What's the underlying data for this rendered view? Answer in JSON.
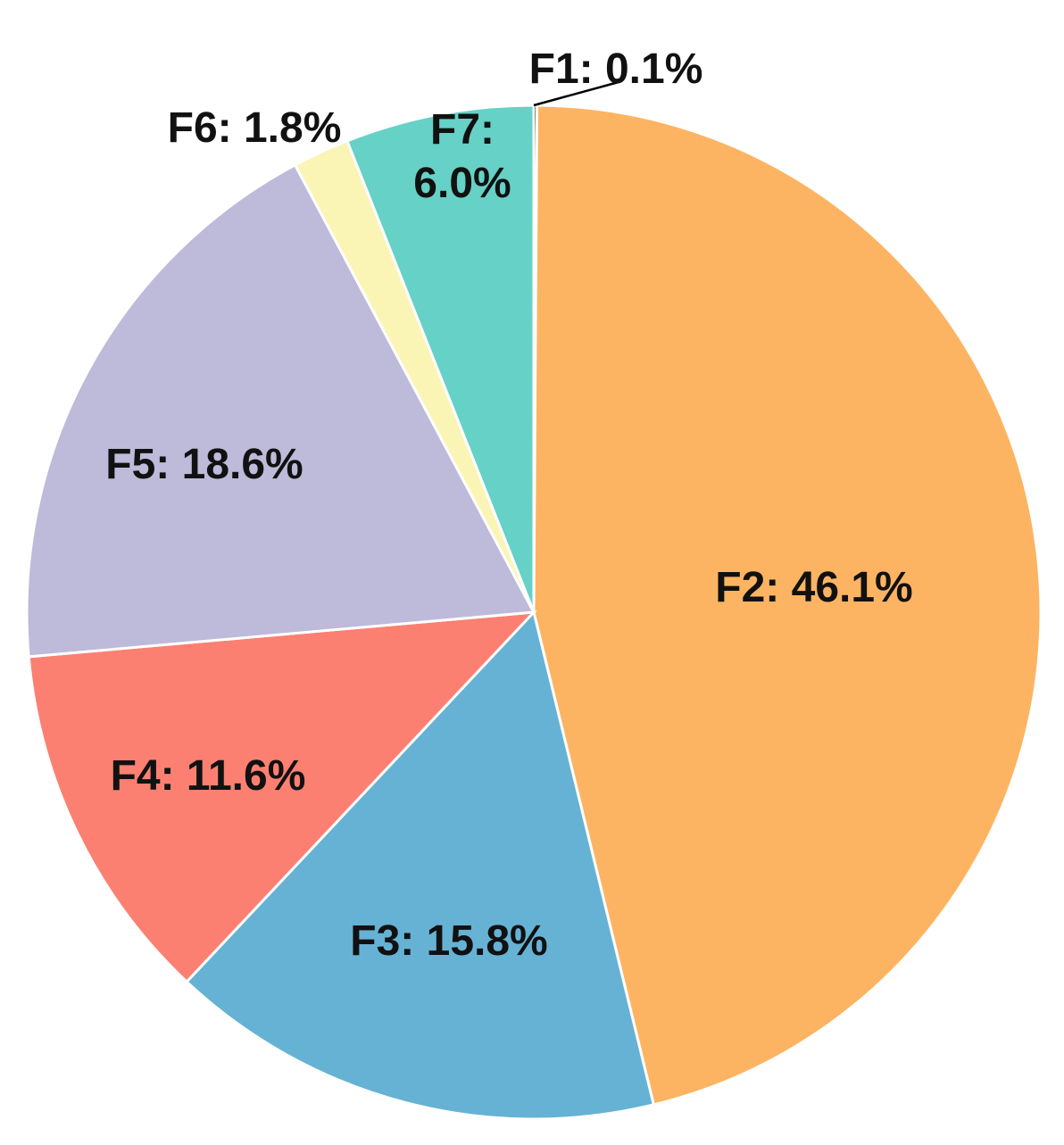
{
  "chart_data": {
    "type": "pie",
    "start": "12 o'clock",
    "direction": "clockwise",
    "legend": "none",
    "slices": [
      {
        "name": "F1",
        "value": 0.1,
        "label": "F1: 0.1%",
        "color": "#000000",
        "label_lines": [
          "F1: 0.1%"
        ]
      },
      {
        "name": "F2",
        "value": 46.1,
        "label": "F2: 46.1%",
        "color": "#FDB462",
        "label_lines": [
          "F2: 46.1%"
        ]
      },
      {
        "name": "F3",
        "value": 15.8,
        "label": "F3: 15.8%",
        "color": "#66B2D4",
        "label_lines": [
          "F3: 15.8%"
        ]
      },
      {
        "name": "F4",
        "value": 11.6,
        "label": "F4: 11.6%",
        "color": "#FB8072",
        "label_lines": [
          "F4: 11.6%"
        ]
      },
      {
        "name": "F5",
        "value": 18.6,
        "label": "F5: 18.6%",
        "color": "#BEBADA",
        "label_lines": [
          "F5: 18.6%"
        ]
      },
      {
        "name": "F6",
        "value": 1.8,
        "label": "F6: 1.8%",
        "color": "#FAF5B4",
        "label_lines": [
          "F6: 1.8%"
        ]
      },
      {
        "name": "F7",
        "value": 6.0,
        "label": "F7: 6.0%",
        "color": "#66D1C6",
        "label_lines": [
          "F7:",
          "6.0%"
        ]
      }
    ]
  }
}
